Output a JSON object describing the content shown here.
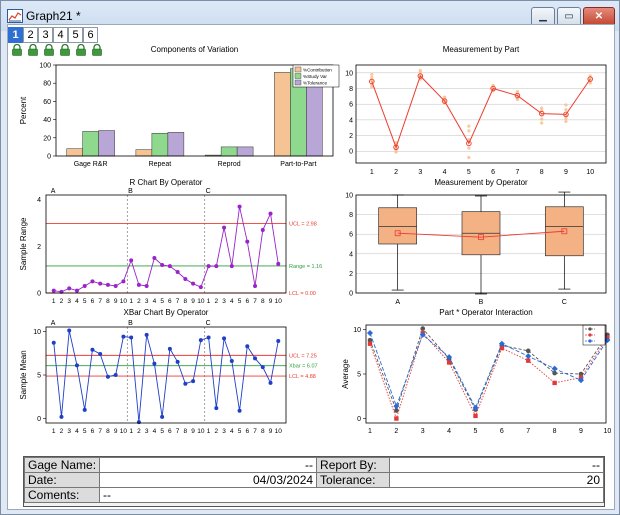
{
  "window": {
    "title": "Graph21 *",
    "minimize_icon": "minimize-icon",
    "maximize_icon": "maximize-icon",
    "close_icon": "close-icon"
  },
  "tabs": [
    "1",
    "2",
    "3",
    "4",
    "5",
    "6"
  ],
  "layer_icons": [
    "lock-icon",
    "lock-icon",
    "lock-icon",
    "lock-icon",
    "lock-icon",
    "lock-icon"
  ],
  "info_table": {
    "gage_name_label": "Gage Name:",
    "gage_name_value": "--",
    "report_by_label": "Report By:",
    "report_by_value": "--",
    "date_label": "Date:",
    "date_value": "04/03/2024",
    "tolerance_label": "Tolerance:",
    "tolerance_value": "20",
    "comments_label": "Coments:",
    "comments_value": "--"
  },
  "colors": {
    "contribution": "#f6c395",
    "study_var": "#8ed98e",
    "tolerance": "#b8a6d6",
    "part_line": "#ee3b30",
    "r_chart": "#9a23c9",
    "xbar_chart": "#1f3fc8",
    "ucl": "#ee3b30",
    "center": "#2e9e3a",
    "box_fill": "#f4b183",
    "op_a": "#555555",
    "op_b": "#e23a3a",
    "op_c": "#2a6bd8"
  },
  "chart_data": [
    {
      "type": "bar",
      "title": "Components of Variation",
      "ylabel": "Percent",
      "xlabel": "",
      "ylim": [
        0,
        100
      ],
      "yticks": [
        "0",
        "20",
        "40",
        "60",
        "80",
        "100"
      ],
      "categories": [
        "Gage R&R",
        "Repeat",
        "Reprod",
        "Part-to-Part"
      ],
      "series": [
        {
          "name": "%Contribution",
          "values": [
            8,
            7,
            1,
            92
          ]
        },
        {
          "name": "%Study Var",
          "values": [
            27,
            25,
            10,
            96
          ]
        },
        {
          "name": "%Tolerance",
          "values": [
            28,
            26,
            10,
            97
          ]
        }
      ],
      "legend": "top-right"
    },
    {
      "type": "line",
      "title": "Measurement by Part",
      "xlabel": "",
      "ylabel": "",
      "ylim": [
        -1.5,
        11
      ],
      "yticks": [
        "0",
        "2",
        "4",
        "6",
        "8",
        "10"
      ],
      "categories": [
        "1",
        "2",
        "3",
        "4",
        "5",
        "6",
        "7",
        "8",
        "9",
        "10"
      ],
      "mean_line": [
        8.9,
        0.5,
        9.6,
        6.4,
        1.0,
        8.0,
        7.1,
        4.8,
        4.7,
        9.2
      ],
      "points": [
        [
          8.5,
          9.0,
          9.8,
          8.2,
          9.4
        ],
        [
          0.2,
          0.8,
          1.1,
          -0.1,
          0.4
        ],
        [
          9.2,
          10.1,
          9.7,
          9.4,
          10.3
        ],
        [
          6.1,
          6.8,
          6.3,
          6.5,
          6.9
        ],
        [
          0.4,
          1.5,
          2.6,
          3.2,
          -0.8
        ],
        [
          7.9,
          8.3,
          7.7,
          8.4,
          8.1
        ],
        [
          6.8,
          7.4,
          7.0,
          7.6,
          6.6
        ],
        [
          4.1,
          5.2,
          4.6,
          5.5,
          3.6
        ],
        [
          3.8,
          5.3,
          4.2,
          5.9,
          4.6
        ],
        [
          8.9,
          9.4,
          9.1,
          9.6,
          8.7
        ]
      ]
    },
    {
      "type": "line",
      "title": "R Chart By Operator",
      "ylabel": "Sample Range",
      "xlabel": "",
      "ylim": [
        0,
        4.2
      ],
      "operators": [
        "A",
        "B",
        "C"
      ],
      "x_labels": [
        "1",
        "2",
        "3",
        "4",
        "5",
        "6",
        "7",
        "8",
        "9",
        "10"
      ],
      "values": [
        0.1,
        0.05,
        0.2,
        0.1,
        0.3,
        0.5,
        0.4,
        0.35,
        0.3,
        0.5,
        1.4,
        0.35,
        0.3,
        1.5,
        1.2,
        1.15,
        0.9,
        0.6,
        0.4,
        0.25,
        1.15,
        1.15,
        2.8,
        1.15,
        3.7,
        2.2,
        0.3,
        2.7,
        3.4,
        1.25
      ],
      "ucl": 2.98,
      "ucl_label": "UCL = 2.98",
      "center": 1.16,
      "center_label": "Range = 1.16",
      "lcl": 0.0,
      "lcl_label": "LCL = 0.00"
    },
    {
      "type": "box",
      "title": "Measurement by Operator",
      "xlabel": "",
      "ylabel": "",
      "ylim": [
        0,
        10
      ],
      "yticks": [
        "0",
        "2",
        "4",
        "6",
        "8",
        "10"
      ],
      "categories": [
        "A",
        "B",
        "C"
      ],
      "boxes": [
        {
          "min": 0.3,
          "q1": 5.0,
          "median": 6.8,
          "q3": 8.7,
          "max": 10.0,
          "mean": 6.1
        },
        {
          "min": -0.1,
          "q1": 3.9,
          "median": 6.1,
          "q3": 8.3,
          "max": 9.9,
          "mean": 5.7
        },
        {
          "min": 0.4,
          "q1": 3.8,
          "median": 6.8,
          "q3": 8.8,
          "max": 10.3,
          "mean": 6.3
        }
      ]
    },
    {
      "type": "line",
      "title": "XBar Chart By Operator",
      "ylabel": "Sample Mean",
      "xlabel": "",
      "ylim": [
        -0.5,
        10.5
      ],
      "yticks": [
        "0",
        "5",
        "10"
      ],
      "operators": [
        "A",
        "B",
        "C"
      ],
      "x_labels": [
        "1",
        "2",
        "3",
        "4",
        "5",
        "6",
        "7",
        "8",
        "9",
        "10"
      ],
      "values": [
        8.7,
        0.2,
        10.1,
        6.1,
        1.0,
        7.9,
        7.4,
        4.8,
        5.0,
        9.4,
        9.3,
        -0.4,
        9.6,
        6.3,
        0.2,
        8.0,
        6.5,
        4.0,
        4.3,
        9.0,
        9.3,
        1.2,
        9.2,
        6.6,
        0.9,
        8.3,
        6.9,
        5.9,
        4.1,
        8.9
      ],
      "ucl": 7.25,
      "ucl_label": "UCL = 7.25",
      "center": 6.07,
      "center_label": "Xbar = 6.07",
      "lcl": 4.88,
      "lcl_label": "LCL = 4.88"
    },
    {
      "type": "line",
      "title": "Part * Operator Interaction",
      "ylabel": "Average",
      "xlabel": "",
      "ylim": [
        -0.5,
        10.5
      ],
      "yticks": [
        "0",
        "5",
        "10"
      ],
      "categories": [
        "1",
        "2",
        "3",
        "4",
        "5",
        "6",
        "7",
        "8",
        "9",
        "10"
      ],
      "series": [
        {
          "values": [
            8.8,
            0.9,
            10.1,
            6.7,
            1.0,
            8.2,
            7.6,
            5.1,
            5.0,
            9.4
          ]
        },
        {
          "values": [
            8.4,
            0.0,
            9.6,
            6.3,
            0.3,
            7.9,
            6.5,
            4.0,
            4.6,
            9.1
          ]
        },
        {
          "values": [
            9.6,
            1.4,
            9.4,
            6.9,
            1.2,
            8.4,
            7.0,
            5.6,
            4.3,
            8.8
          ]
        }
      ],
      "legend": "top-right"
    }
  ]
}
